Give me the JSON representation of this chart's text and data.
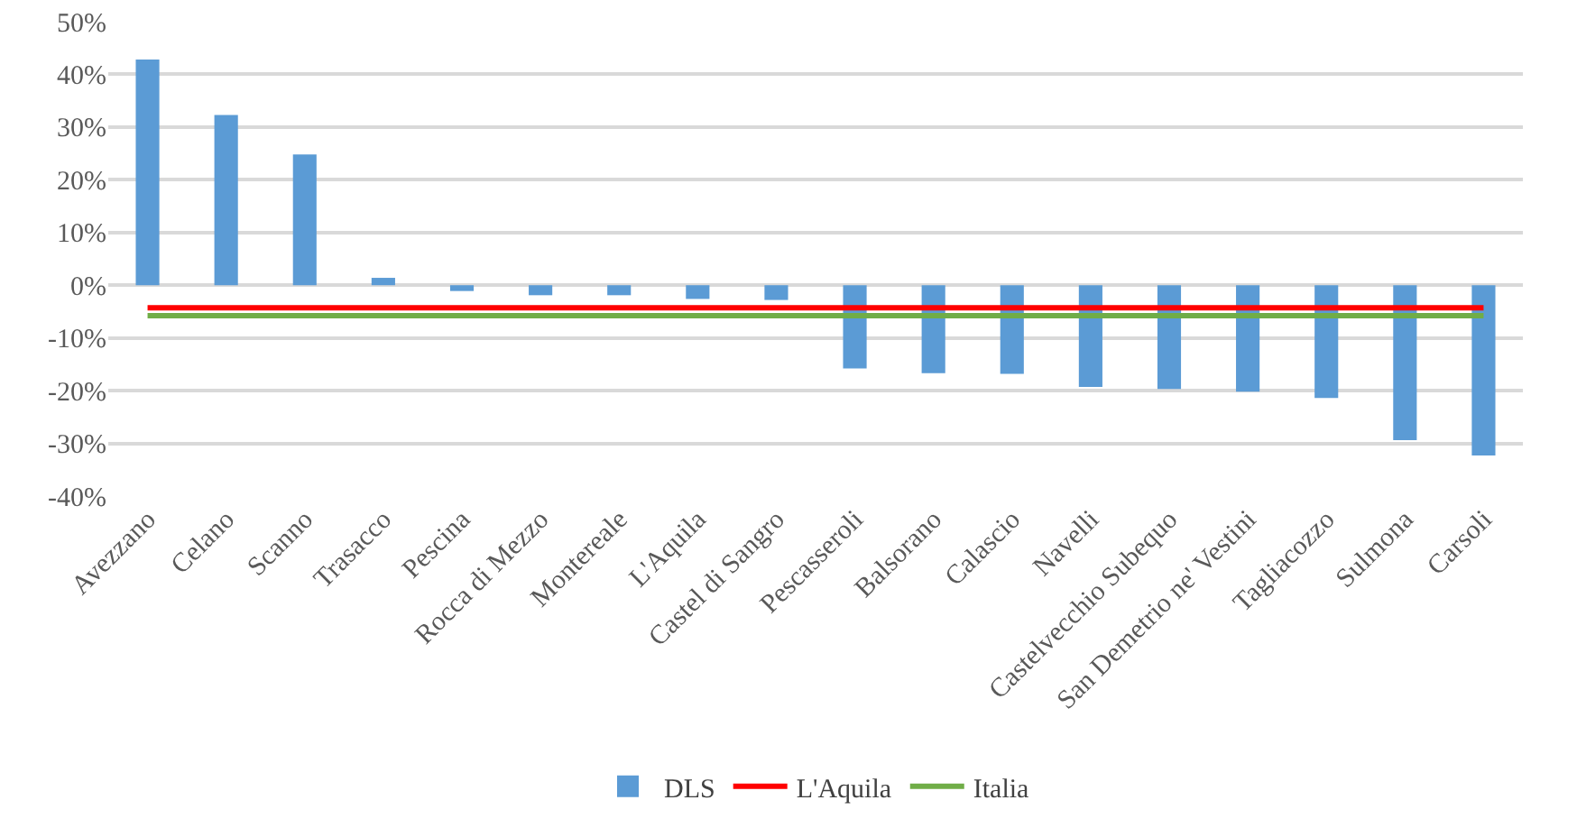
{
  "chart_data": {
    "type": "bar",
    "categories": [
      "Avezzano",
      "Celano",
      "Scanno",
      "Trasacco",
      "Pescina",
      "Rocca di Mezzo",
      "Montereale",
      "L'Aquila",
      "Castel di Sangro",
      "Pescasseroli",
      "Balsorano",
      "Calascio",
      "Navelli",
      "Castelvecchio Subequo",
      "San Demetrio ne' Vestini",
      "Tagliacozzo",
      "Sulmona",
      "Carsoli"
    ],
    "series": [
      {
        "name": "DLS",
        "color": "#5b9bd5",
        "values": [
          42.8,
          32.3,
          24.8,
          1.4,
          -1.1,
          -1.9,
          -1.9,
          -2.6,
          -2.8,
          -15.8,
          -16.7,
          -16.8,
          -19.3,
          -19.7,
          -20.2,
          -21.4,
          -29.4,
          -32.3
        ]
      },
      {
        "name": "L'Aquila",
        "type": "line",
        "color": "#ff0000",
        "values": [
          -4.3,
          -4.3,
          -4.3,
          -4.3,
          -4.3,
          -4.3,
          -4.3,
          -4.3,
          -4.3,
          -4.3,
          -4.3,
          -4.3,
          -4.3,
          -4.3,
          -4.3,
          -4.3,
          -4.3,
          -4.3
        ]
      },
      {
        "name": "Italia",
        "type": "line",
        "color": "#70ad47",
        "values": [
          -5.8,
          -5.8,
          -5.8,
          -5.8,
          -5.8,
          -5.8,
          -5.8,
          -5.8,
          -5.8,
          -5.8,
          -5.8,
          -5.8,
          -5.8,
          -5.8,
          -5.8,
          -5.8,
          -5.8,
          -5.8
        ]
      }
    ],
    "ylim": [
      -40,
      50
    ],
    "yticks": [
      {
        "value": -40,
        "label": "-40%"
      },
      {
        "value": -30,
        "label": "-30%"
      },
      {
        "value": -20,
        "label": "-20%"
      },
      {
        "value": -10,
        "label": "-10%"
      },
      {
        "value": 0,
        "label": "0%"
      },
      {
        "value": 10,
        "label": "10%"
      },
      {
        "value": 20,
        "label": "20%"
      },
      {
        "value": 30,
        "label": "30%"
      },
      {
        "value": 40,
        "label": "40%"
      },
      {
        "value": 50,
        "label": "50%"
      }
    ],
    "grid": "y",
    "legend": "bottom",
    "marker": "none",
    "line_style": "solid"
  }
}
